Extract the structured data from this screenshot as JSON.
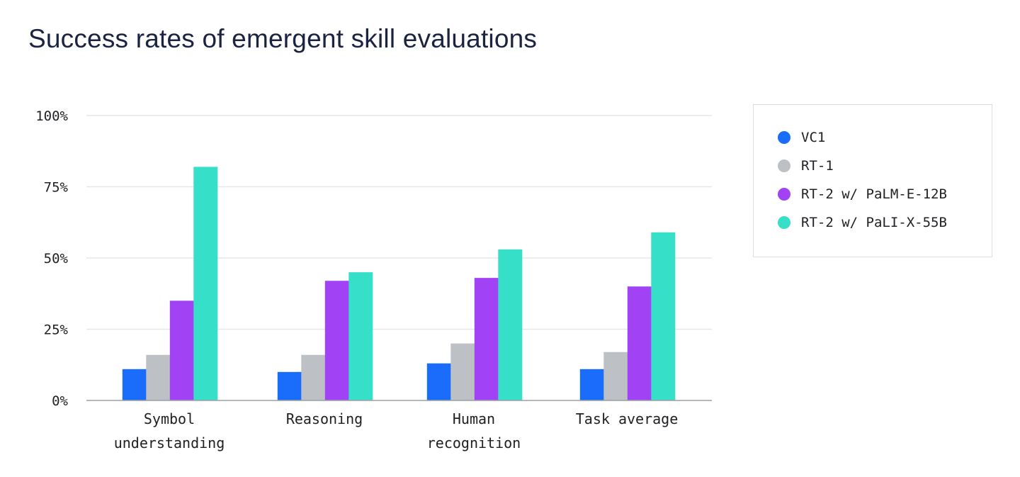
{
  "title": "Success rates of emergent skill evaluations",
  "chart_data": {
    "type": "bar",
    "title": "Success rates of emergent skill evaluations",
    "categories": [
      [
        "Symbol",
        "understanding"
      ],
      [
        "Reasoning"
      ],
      [
        "Human",
        "recognition"
      ],
      [
        "Task average"
      ]
    ],
    "series": [
      {
        "name": "VC1",
        "color": "#1a6dfb",
        "values": [
          11,
          10,
          13,
          11
        ]
      },
      {
        "name": "RT-1",
        "color": "#bdc1c6",
        "values": [
          16,
          16,
          20,
          17
        ]
      },
      {
        "name": "RT-2 w/ PaLM-E-12B",
        "color": "#a142f4",
        "values": [
          35,
          42,
          43,
          40
        ]
      },
      {
        "name": "RT-2 w/ PaLI-X-55B",
        "color": "#36e0c8",
        "values": [
          82,
          45,
          53,
          59
        ]
      }
    ],
    "ylim": [
      0,
      100
    ],
    "yticks": [
      "0%",
      "25%",
      "50%",
      "75%",
      "100%"
    ],
    "grid": true,
    "legend_position": "right"
  }
}
